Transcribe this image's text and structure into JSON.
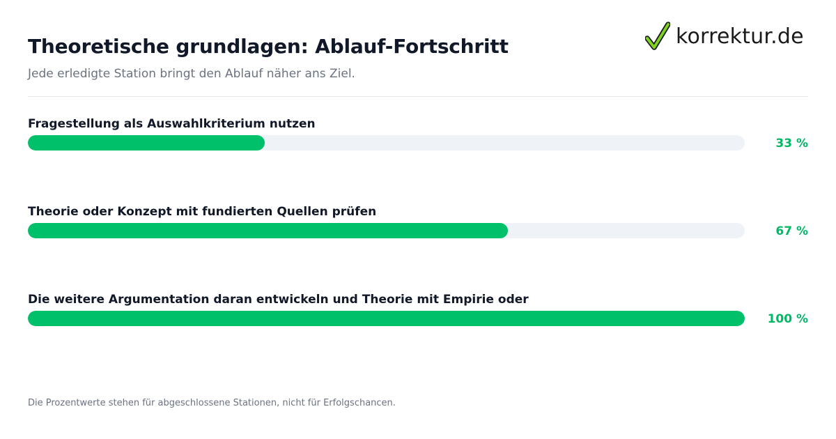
{
  "header": {
    "title": "Theoretische grundlagen: Ablauf-Fortschritt",
    "subtitle": "Jede erledigte Station bringt den Ablauf näher ans Ziel."
  },
  "brand": {
    "name": "korrektur.de",
    "icon": "checkmark-icon",
    "check_color": "#7ed321",
    "outline_color": "#1a1a1a"
  },
  "chart_data": {
    "type": "bar",
    "orientation": "horizontal",
    "title": "Theoretische grundlagen: Ablauf-Fortschritt",
    "subtitle": "Jede erledigte Station bringt den Ablauf näher ans Ziel.",
    "xlim": [
      0,
      100
    ],
    "unit": "%",
    "grid": false,
    "bar_color": "#00c16a",
    "track_color": "#eff3f8",
    "categories": [
      "Fragestellung als Auswahlkriterium nutzen",
      "Theorie oder Konzept mit fundierten Quellen prüfen",
      "Die weitere Argumentation daran entwickeln und Theorie mit Empirie oder"
    ],
    "values": [
      33,
      67,
      100
    ],
    "value_labels": [
      "33 %",
      "67 %",
      "100 %"
    ]
  },
  "footer": {
    "note": "Die Prozentwerte stehen für abgeschlossene Stationen, nicht für Erfolgschancen."
  }
}
